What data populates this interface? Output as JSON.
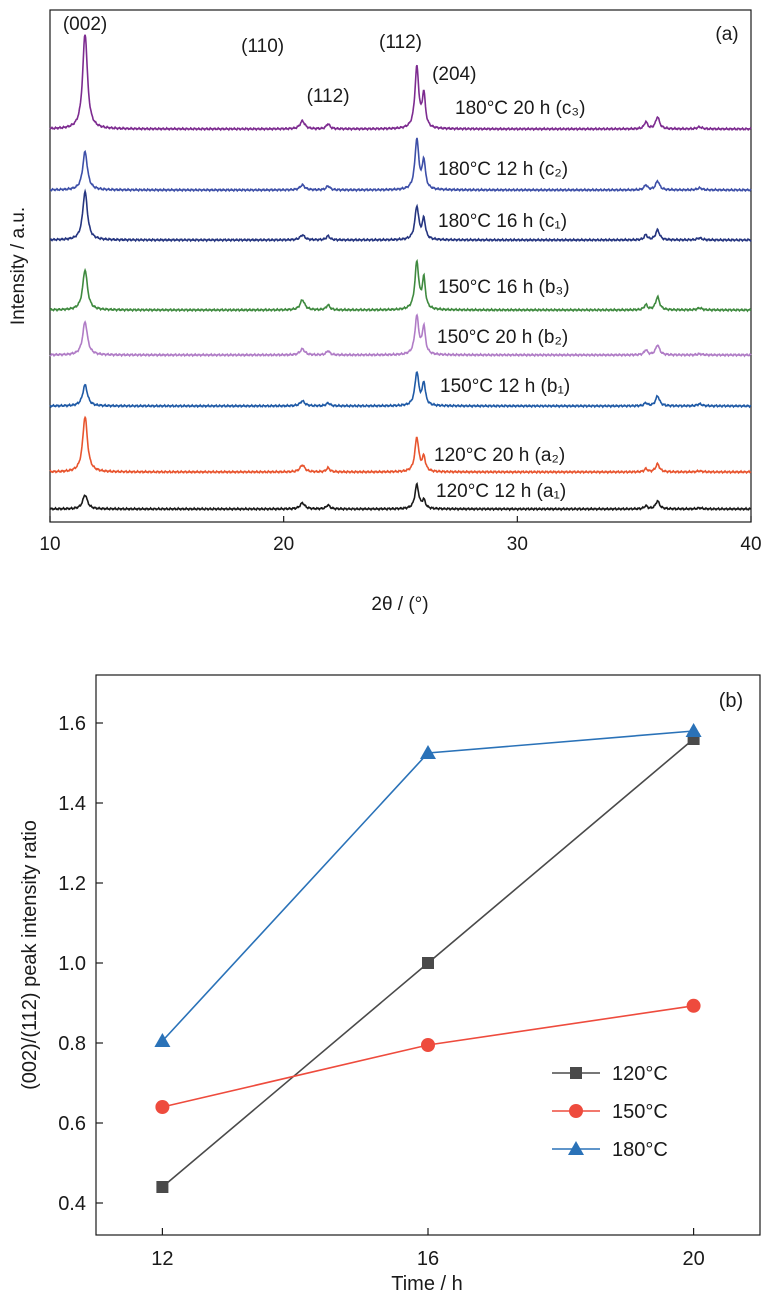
{
  "chart_data": [
    {
      "type": "line",
      "panel_label": "(a)",
      "xlabel": "2θ / (°)",
      "ylabel": "Intensity / a.u.",
      "xlim": [
        10,
        40
      ],
      "xticks": [
        "10",
        "20",
        "30",
        "40"
      ],
      "peak_labels": [
        {
          "text": "(002)",
          "x": 11.5
        },
        {
          "text": "(110)",
          "x": 19.1
        },
        {
          "text": "(112)",
          "x": 21.9
        },
        {
          "text": "(112)",
          "x": 25.0
        },
        {
          "text": "(204)",
          "x": 27.3
        }
      ],
      "peaks": [
        {
          "x": 11.5,
          "w": 0.12
        },
        {
          "x": 20.8,
          "w": 0.12
        },
        {
          "x": 21.9,
          "w": 0.09
        },
        {
          "x": 25.7,
          "w": 0.1
        },
        {
          "x": 26.0,
          "w": 0.08
        },
        {
          "x": 35.5,
          "w": 0.08
        },
        {
          "x": 36.0,
          "w": 0.1
        },
        {
          "x": 37.8,
          "w": 0.12
        }
      ],
      "series": [
        {
          "name": "120°C 12 h (a₁)",
          "color": "#1a1a1a",
          "amplitudes": [
            14,
            6,
            4,
            24,
            8,
            3,
            8,
            1
          ]
        },
        {
          "name": "120°C 20 h (a₂)",
          "color": "#e8552f",
          "amplitudes": [
            55,
            7,
            4,
            34,
            14,
            3,
            8,
            1
          ]
        },
        {
          "name": "150°C 12 h (b₁)",
          "color": "#1f5aa6",
          "amplitudes": [
            21,
            5,
            3,
            33,
            22,
            3,
            10,
            2
          ]
        },
        {
          "name": "150°C 20 h (b₂)",
          "color": "#b07cc6",
          "amplitudes": [
            33,
            6,
            4,
            38,
            27,
            5,
            10,
            1
          ]
        },
        {
          "name": "150°C 16 h (b₃)",
          "color": "#3f8a3f",
          "amplitudes": [
            40,
            10,
            5,
            47,
            30,
            5,
            13,
            2
          ]
        },
        {
          "name": "180°C 16 h (c₁)",
          "color": "#253580",
          "amplitudes": [
            48,
            5,
            4,
            33,
            20,
            5,
            10,
            2
          ]
        },
        {
          "name": "180°C 12 h (c₂)",
          "color": "#3d4fa8",
          "amplitudes": [
            38,
            5,
            4,
            50,
            28,
            5,
            9,
            2
          ]
        },
        {
          "name": "180°C 20 h (c₃)",
          "color": "#7d2b90",
          "amplitudes": [
            95,
            8,
            5,
            61,
            33,
            7,
            12,
            2
          ]
        }
      ]
    },
    {
      "type": "line",
      "panel_label": "(b)",
      "xlabel": "Time / h",
      "ylabel": "(002)/(112) peak intensity ratio",
      "xlim": [
        11,
        21
      ],
      "ylim": [
        0.32,
        1.72
      ],
      "xticks": [
        12,
        16,
        20
      ],
      "yticks": [
        0.4,
        0.6,
        0.8,
        1.0,
        1.2,
        1.4,
        1.6
      ],
      "x": [
        12,
        16,
        20
      ],
      "legend_position": "bottom-right",
      "series": [
        {
          "name": "120°C",
          "marker": "square",
          "color": "#4a4a4a",
          "values": [
            0.44,
            1.0,
            1.56
          ]
        },
        {
          "name": "150°C",
          "marker": "circle",
          "color": "#ee4b3d",
          "values": [
            0.64,
            0.795,
            0.893
          ]
        },
        {
          "name": "180°C",
          "marker": "triangle",
          "color": "#2a72b8",
          "values": [
            0.805,
            1.525,
            1.58
          ]
        }
      ]
    }
  ]
}
